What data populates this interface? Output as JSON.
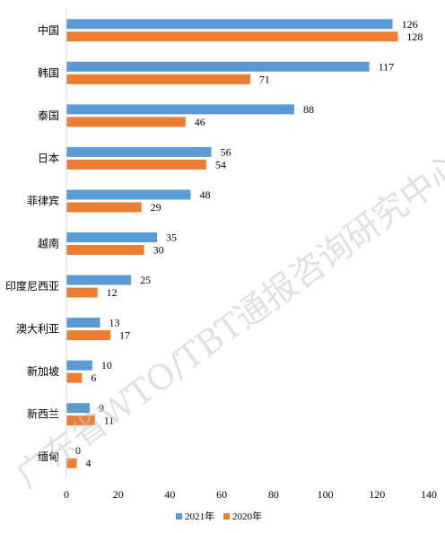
{
  "watermark": "广东省WTO/TBT通报咨询研究中心",
  "chart_data": {
    "type": "bar",
    "orientation": "horizontal",
    "categories": [
      "中国",
      "韩国",
      "泰国",
      "日本",
      "菲律宾",
      "越南",
      "印度尼西亚",
      "澳大利亚",
      "新加坡",
      "新西兰",
      "缅甸"
    ],
    "series": [
      {
        "name": "2021年",
        "color": "#5b9bd5",
        "values": [
          126,
          117,
          88,
          56,
          48,
          35,
          25,
          13,
          10,
          9,
          0
        ]
      },
      {
        "name": "2020年",
        "color": "#ed7d31",
        "values": [
          128,
          71,
          46,
          54,
          29,
          30,
          12,
          17,
          6,
          11,
          4
        ]
      }
    ],
    "xlim": [
      0,
      140
    ],
    "xticks": [
      0,
      20,
      40,
      60,
      80,
      100,
      120,
      140
    ],
    "data_labels": true,
    "gridlines": false,
    "legend_position": "bottom"
  }
}
